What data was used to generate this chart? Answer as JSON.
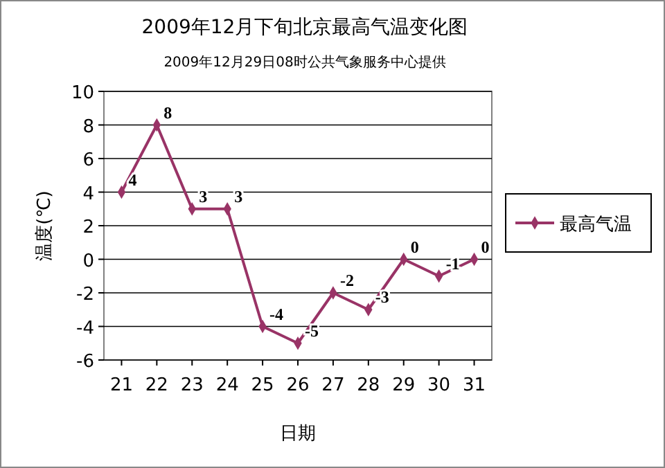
{
  "chart_data": {
    "type": "line",
    "title": "2009年12月下旬北京最高气温变化图",
    "subtitle": "2009年12月29日08时公共气象服务中心提供",
    "xlabel": "日期",
    "ylabel": "温度(℃)",
    "categories": [
      "21",
      "22",
      "23",
      "24",
      "25",
      "26",
      "27",
      "28",
      "29",
      "30",
      "31"
    ],
    "series": [
      {
        "name": "最高气温",
        "color": "#993366",
        "values": [
          4,
          8,
          3,
          3,
          -4,
          -5,
          -2,
          -3,
          0,
          -1,
          0
        ]
      }
    ],
    "ylim": [
      -6,
      10
    ],
    "yticks": [
      -6,
      -4,
      -2,
      0,
      2,
      4,
      6,
      8,
      10
    ],
    "grid": "y",
    "legend": "right",
    "marker": "diamond",
    "data_labels": true
  }
}
